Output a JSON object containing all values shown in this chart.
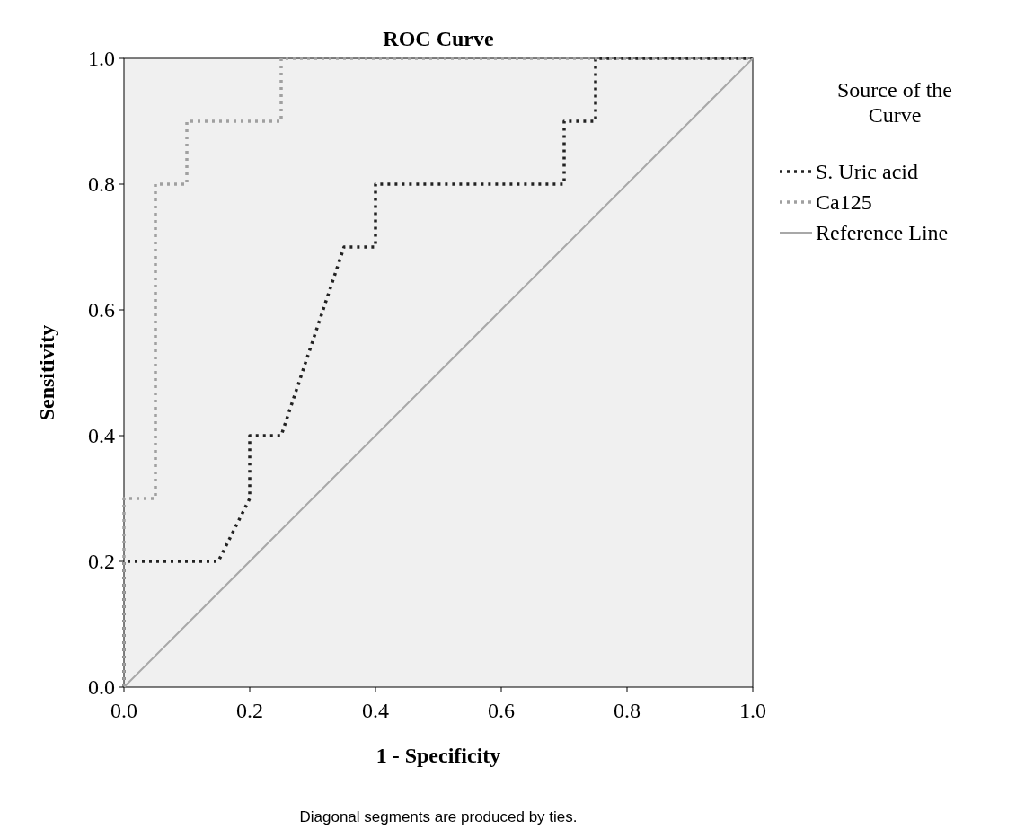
{
  "chart_data": {
    "type": "line",
    "title": "ROC Curve",
    "xlabel": "1 - Specificity",
    "ylabel": "Sensitivity",
    "legend_title": "Source of the Curve",
    "legend": "right",
    "grid": false,
    "xlim": [
      0,
      1
    ],
    "ylim": [
      0,
      1
    ],
    "xticks": [
      {
        "value": 0,
        "label": "0.0"
      },
      0.2,
      0.4,
      0.6,
      0.8,
      {
        "value": 1,
        "label": "1.0"
      }
    ],
    "yticks": [
      {
        "value": 0,
        "label": "0.0"
      },
      0.2,
      0.4,
      0.6,
      0.8,
      {
        "value": 1,
        "label": "1.0"
      }
    ],
    "series": [
      {
        "name": "S. Uric acid",
        "color": "#222222",
        "line_style": "dotted",
        "x": [
          0,
          0,
          0.15,
          0.2,
          0.2,
          0.25,
          0.35,
          0.4,
          0.4,
          0.7,
          0.7,
          0.75,
          0.75,
          1
        ],
        "values": [
          0,
          0.2,
          0.2,
          0.3,
          0.4,
          0.4,
          0.7,
          0.7,
          0.8,
          0.8,
          0.9,
          0.9,
          1,
          1
        ]
      },
      {
        "name": "Ca125",
        "color": "#a0a0a0",
        "line_style": "dotted",
        "x": [
          0,
          0,
          0.05,
          0.05,
          0.1,
          0.1,
          0.25,
          0.25,
          1
        ],
        "values": [
          0,
          0.3,
          0.3,
          0.8,
          0.8,
          0.9,
          0.9,
          1,
          1
        ]
      },
      {
        "name": "Reference Line",
        "color": "#a8a8a8",
        "line_style": "solid",
        "x": [
          0,
          1
        ],
        "values": [
          0,
          1
        ]
      }
    ],
    "annotations": [
      "Diagonal segments are produced by ties."
    ]
  }
}
